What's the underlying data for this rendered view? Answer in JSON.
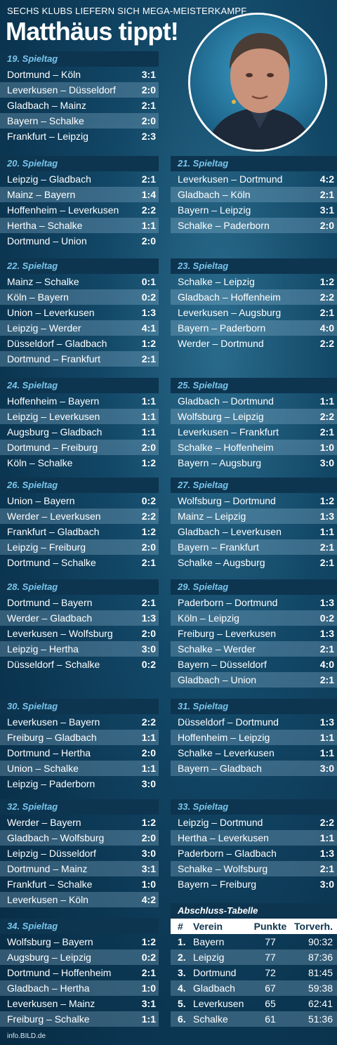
{
  "kicker": "SECHS KLUBS LIEFERN SICH MEGA-MEISTERKAMPF",
  "headline": "Matthäus tippt!",
  "footer": "info.BILD.de",
  "colors": {
    "accent": "#79c6ec",
    "header_bg": "#0d3550",
    "background": "#124766"
  },
  "matchdays": [
    {
      "title": "19. Spieltag",
      "matches": [
        {
          "m": "Dortmund – Köln",
          "s": "3:1"
        },
        {
          "m": "Leverkusen – Düsseldorf",
          "s": "2:0"
        },
        {
          "m": "Gladbach – Mainz",
          "s": "2:1"
        },
        {
          "m": "Bayern – Schalke",
          "s": "2:0"
        },
        {
          "m": "Frankfurt – Leipzig",
          "s": "2:3"
        }
      ]
    },
    {
      "title": "20. Spieltag",
      "matches": [
        {
          "m": "Leipzig – Gladbach",
          "s": "2:1"
        },
        {
          "m": "Mainz – Bayern",
          "s": "1:4"
        },
        {
          "m": "Hoffenheim – Leverkusen",
          "s": "2:2"
        },
        {
          "m": "Hertha – Schalke",
          "s": "1:1"
        },
        {
          "m": "Dortmund – Union",
          "s": "2:0"
        }
      ]
    },
    {
      "title": "21. Spieltag",
      "matches": [
        {
          "m": "Leverkusen – Dortmund",
          "s": "4:2"
        },
        {
          "m": "Gladbach – Köln",
          "s": "2:1"
        },
        {
          "m": "Bayern – Leipzig",
          "s": "3:1"
        },
        {
          "m": "Schalke – Paderborn",
          "s": "2:0"
        }
      ]
    },
    {
      "title": "22. Spieltag",
      "matches": [
        {
          "m": "Mainz – Schalke",
          "s": "0:1"
        },
        {
          "m": "Köln – Bayern",
          "s": "0:2"
        },
        {
          "m": "Union – Leverkusen",
          "s": "1:3"
        },
        {
          "m": "Leipzig – Werder",
          "s": "4:1"
        },
        {
          "m": "Düsseldorf – Gladbach",
          "s": "1:2"
        },
        {
          "m": "Dortmund – Frankfurt",
          "s": "2:1"
        }
      ]
    },
    {
      "title": "23. Spieltag",
      "matches": [
        {
          "m": "Schalke – Leipzig",
          "s": "1:2"
        },
        {
          "m": "Gladbach – Hoffenheim",
          "s": "2:2"
        },
        {
          "m": "Leverkusen – Augsburg",
          "s": "2:1"
        },
        {
          "m": "Bayern – Paderborn",
          "s": "4:0"
        },
        {
          "m": "Werder – Dortmund",
          "s": "2:2"
        }
      ]
    },
    {
      "title": "24. Spieltag",
      "matches": [
        {
          "m": "Hoffenheim – Bayern",
          "s": "1:1"
        },
        {
          "m": "Leipzig – Leverkusen",
          "s": "1:1"
        },
        {
          "m": "Augsburg – Gladbach",
          "s": "1:1"
        },
        {
          "m": "Dortmund – Freiburg",
          "s": "2:0"
        },
        {
          "m": "Köln – Schalke",
          "s": "1:2"
        }
      ]
    },
    {
      "title": "25. Spieltag",
      "matches": [
        {
          "m": "Gladbach – Dortmund",
          "s": "1:1"
        },
        {
          "m": "Wolfsburg – Leipzig",
          "s": "2:2"
        },
        {
          "m": "Leverkusen – Frankfurt",
          "s": "2:1"
        },
        {
          "m": "Schalke – Hoffenheim",
          "s": "1:0"
        },
        {
          "m": "Bayern – Augsburg",
          "s": "3:0"
        }
      ]
    },
    {
      "title": "26. Spieltag",
      "matches": [
        {
          "m": "Union – Bayern",
          "s": "0:2"
        },
        {
          "m": "Werder – Leverkusen",
          "s": "2:2"
        },
        {
          "m": "Frankfurt – Gladbach",
          "s": "1:2"
        },
        {
          "m": "Leipzig – Freiburg",
          "s": "2:0"
        },
        {
          "m": "Dortmund – Schalke",
          "s": "2:1"
        }
      ]
    },
    {
      "title": "27. Spieltag",
      "matches": [
        {
          "m": "Wolfsburg – Dortmund",
          "s": "1:2"
        },
        {
          "m": "Mainz – Leipzig",
          "s": "1:3"
        },
        {
          "m": "Gladbach – Leverkusen",
          "s": "1:1"
        },
        {
          "m": "Bayern – Frankfurt",
          "s": "2:1"
        },
        {
          "m": "Schalke – Augsburg",
          "s": "2:1"
        }
      ]
    },
    {
      "title": "28. Spieltag",
      "matches": [
        {
          "m": "Dortmund – Bayern",
          "s": "2:1"
        },
        {
          "m": "Werder – Gladbach",
          "s": "1:3"
        },
        {
          "m": "Leverkusen – Wolfsburg",
          "s": "2:0"
        },
        {
          "m": "Leipzig – Hertha",
          "s": "3:0"
        },
        {
          "m": "Düsseldorf – Schalke",
          "s": "0:2"
        }
      ]
    },
    {
      "title": "29. Spieltag",
      "matches": [
        {
          "m": "Paderborn – Dortmund",
          "s": "1:3"
        },
        {
          "m": "Köln – Leipzig",
          "s": "0:2"
        },
        {
          "m": "Freiburg – Leverkusen",
          "s": "1:3"
        },
        {
          "m": "Schalke – Werder",
          "s": "2:1"
        },
        {
          "m": "Bayern – Düsseldorf",
          "s": "4:0"
        },
        {
          "m": "Gladbach – Union",
          "s": "2:1"
        }
      ]
    },
    {
      "title": "30. Spieltag",
      "matches": [
        {
          "m": "Leverkusen – Bayern",
          "s": "2:2"
        },
        {
          "m": "Freiburg – Gladbach",
          "s": "1:1"
        },
        {
          "m": "Dortmund – Hertha",
          "s": "2:0"
        },
        {
          "m": "Union – Schalke",
          "s": "1:1"
        },
        {
          "m": "Leipzig – Paderborn",
          "s": "3:0"
        }
      ]
    },
    {
      "title": "31. Spieltag",
      "matches": [
        {
          "m": "Düsseldorf – Dortmund",
          "s": "1:3"
        },
        {
          "m": "Hoffenheim – Leipzig",
          "s": "1:1"
        },
        {
          "m": "Schalke – Leverkusen",
          "s": "1:1"
        },
        {
          "m": "Bayern – Gladbach",
          "s": "3:0"
        }
      ]
    },
    {
      "title": "32. Spieltag",
      "matches": [
        {
          "m": "Werder – Bayern",
          "s": "1:2"
        },
        {
          "m": "Gladbach – Wolfsburg",
          "s": "2:0"
        },
        {
          "m": "Leipzig – Düsseldorf",
          "s": "3:0"
        },
        {
          "m": "Dortmund – Mainz",
          "s": "3:1"
        },
        {
          "m": "Frankfurt – Schalke",
          "s": "1:0"
        },
        {
          "m": "Leverkusen – Köln",
          "s": "4:2"
        }
      ]
    },
    {
      "title": "33. Spieltag",
      "matches": [
        {
          "m": "Leipzig – Dortmund",
          "s": "2:2"
        },
        {
          "m": "Hertha – Leverkusen",
          "s": "1:1"
        },
        {
          "m": "Paderborn – Gladbach",
          "s": "1:3"
        },
        {
          "m": "Schalke – Wolfsburg",
          "s": "2:1"
        },
        {
          "m": "Bayern – Freiburg",
          "s": "3:0"
        }
      ]
    },
    {
      "title": "34. Spieltag",
      "matches": [
        {
          "m": "Wolfsburg – Bayern",
          "s": "1:2"
        },
        {
          "m": "Augsburg – Leipzig",
          "s": "0:2"
        },
        {
          "m": "Dortmund – Hoffenheim",
          "s": "2:1"
        },
        {
          "m": "Gladbach – Hertha",
          "s": "1:0"
        },
        {
          "m": "Leverkusen – Mainz",
          "s": "3:1"
        },
        {
          "m": "Freiburg – Schalke",
          "s": "1:1"
        }
      ]
    }
  ],
  "table": {
    "title": "Abschluss-Tabelle",
    "headers": [
      "#",
      "Verein",
      "Punkte",
      "Torverh."
    ],
    "rows": [
      {
        "rank": "1.",
        "team": "Bayern",
        "points": "77",
        "goals": "90:32"
      },
      {
        "rank": "2.",
        "team": "Leipzig",
        "points": "77",
        "goals": "87:36"
      },
      {
        "rank": "3.",
        "team": "Dortmund",
        "points": "72",
        "goals": "81:45"
      },
      {
        "rank": "4.",
        "team": "Gladbach",
        "points": "67",
        "goals": "59:38"
      },
      {
        "rank": "5.",
        "team": "Leverkusen",
        "points": "65",
        "goals": "62:41"
      },
      {
        "rank": "6.",
        "team": "Schalke",
        "points": "61",
        "goals": "51:36"
      }
    ]
  }
}
